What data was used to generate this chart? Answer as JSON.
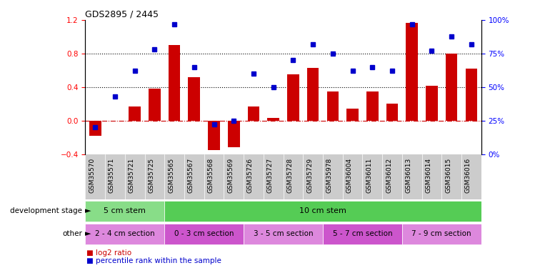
{
  "title": "GDS2895 / 2445",
  "samples": [
    "GSM35570",
    "GSM35571",
    "GSM35721",
    "GSM35725",
    "GSM35565",
    "GSM35567",
    "GSM35568",
    "GSM35569",
    "GSM35726",
    "GSM35727",
    "GSM35728",
    "GSM35729",
    "GSM35978",
    "GSM36004",
    "GSM36011",
    "GSM36012",
    "GSM36013",
    "GSM36014",
    "GSM36015",
    "GSM36016"
  ],
  "log2_ratio": [
    -0.18,
    0.0,
    0.17,
    0.38,
    0.9,
    0.52,
    -0.35,
    -0.32,
    0.17,
    0.03,
    0.55,
    0.63,
    0.35,
    0.14,
    0.35,
    0.2,
    1.17,
    0.42,
    0.8,
    0.62
  ],
  "percentile": [
    20,
    43,
    62,
    78,
    97,
    65,
    22,
    25,
    60,
    50,
    70,
    82,
    75,
    62,
    65,
    62,
    97,
    77,
    88,
    82
  ],
  "bar_color": "#cc0000",
  "dot_color": "#0000cc",
  "ylim_left": [
    -0.4,
    1.2
  ],
  "ylim_right": [
    0,
    100
  ],
  "hlines": [
    0.4,
    0.8
  ],
  "zero_line_color": "#cc0000",
  "dev_stage_groups": [
    {
      "label": "5 cm stem",
      "start": 0,
      "end": 4,
      "color": "#88dd88"
    },
    {
      "label": "10 cm stem",
      "start": 4,
      "end": 20,
      "color": "#55cc55"
    }
  ],
  "other_groups": [
    {
      "label": "2 - 4 cm section",
      "start": 0,
      "end": 4,
      "color": "#dd88dd"
    },
    {
      "label": "0 - 3 cm section",
      "start": 4,
      "end": 8,
      "color": "#cc55cc"
    },
    {
      "label": "3 - 5 cm section",
      "start": 8,
      "end": 12,
      "color": "#dd88dd"
    },
    {
      "label": "5 - 7 cm section",
      "start": 12,
      "end": 16,
      "color": "#cc55cc"
    },
    {
      "label": "7 - 9 cm section",
      "start": 16,
      "end": 20,
      "color": "#dd88dd"
    }
  ],
  "background_color": "#ffffff",
  "tick_area_color": "#cccccc",
  "left_ticks": [
    -0.4,
    0.0,
    0.4,
    0.8,
    1.2
  ],
  "right_ticks": [
    0,
    25,
    50,
    75,
    100
  ]
}
